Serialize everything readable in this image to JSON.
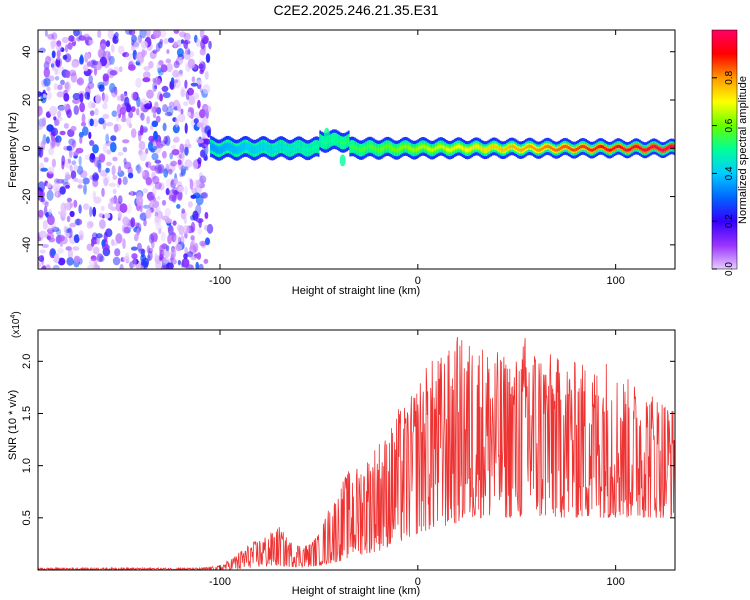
{
  "title": "C2E2.2025.246.21.35.E31",
  "chart_data": [
    {
      "type": "heatmap",
      "title": "C2E2.2025.246.21.35.E31",
      "xlabel": "Height of straight line (km)",
      "ylabel": "Frequency (Hz)",
      "xlim": [
        -192,
        130
      ],
      "ylim": [
        -50,
        49
      ],
      "xticks": [
        -100,
        0,
        100
      ],
      "xtick_labels": [
        "-100",
        "0",
        "100"
      ],
      "yticks": [
        -40,
        -20,
        0,
        20,
        40
      ],
      "ytick_labels": [
        "-40",
        "-20",
        "0",
        "20",
        "40"
      ],
      "grid": false,
      "noise_region_km": [
        -192,
        -105
      ],
      "signal_band_hz": [
        -4,
        4
      ],
      "colorbar": {
        "label": "Normalized spectral amplitude",
        "range": [
          0.0,
          1.0
        ],
        "ticks": [
          0.0,
          0.2,
          0.4,
          0.6,
          0.8
        ],
        "tick_labels": [
          "0.0",
          "0.2",
          "0.4",
          "0.6",
          "0.8"
        ],
        "colormap": [
          "#e6ccff",
          "#9933ff",
          "#3300ff",
          "#0066ff",
          "#00ccff",
          "#00ff99",
          "#66ff00",
          "#ffff00",
          "#ff9900",
          "#ff0000",
          "#ff0066"
        ]
      }
    },
    {
      "type": "line",
      "xlabel": "Height of straight line (km)",
      "ylabel": "SNR (10 * v/v)",
      "y_multiplier": "(x10^4)",
      "y_multiplier_base": "(x10",
      "y_multiplier_exp": "4",
      "y_multiplier_close": ")",
      "xlim": [
        -192,
        130
      ],
      "ylim": [
        0,
        2.3
      ],
      "xticks": [
        -100,
        0,
        100
      ],
      "xtick_labels": [
        "-100",
        "0",
        "100"
      ],
      "yticks": [
        0.5,
        1.0,
        1.5,
        2.0
      ],
      "ytick_labels": [
        "0.5",
        "1.0",
        "1.5",
        "2.0"
      ],
      "color": "#ee3333",
      "series": [
        {
          "name": "SNR",
          "x": [
            -192,
            -150,
            -110,
            -100,
            -95,
            -90,
            -85,
            -80,
            -75,
            -70,
            -65,
            -60,
            -55,
            -50,
            -45,
            -40,
            -37,
            -35,
            -30,
            -25,
            -20,
            -15,
            -10,
            -5,
            0,
            5,
            10,
            15,
            20,
            25,
            30,
            35,
            40,
            45,
            50,
            55,
            60,
            65,
            70,
            75,
            80,
            85,
            90,
            95,
            100,
            105,
            110,
            115,
            120,
            125,
            130
          ],
          "y": [
            0.01,
            0.01,
            0.01,
            0.02,
            0.05,
            0.1,
            0.15,
            0.18,
            0.22,
            0.3,
            0.15,
            0.12,
            0.1,
            0.15,
            0.35,
            0.45,
            0.85,
            0.6,
            0.55,
            0.65,
            0.9,
            0.75,
            1.1,
            0.95,
            1.05,
            1.25,
            1.4,
            1.5,
            1.6,
            1.75,
            1.65,
            1.95,
            1.5,
            1.7,
            1.6,
            2.3,
            1.9,
            1.55,
            1.85,
            1.4,
            1.6,
            1.7,
            1.45,
            1.5,
            1.35,
            1.55,
            1.3,
            1.45,
            1.25,
            1.35,
            1.2
          ],
          "y_upper": [
            0.02,
            0.02,
            0.02,
            0.04,
            0.1,
            0.18,
            0.25,
            0.3,
            0.35,
            0.42,
            0.28,
            0.25,
            0.25,
            0.35,
            0.6,
            0.75,
            0.9,
            0.95,
            1.0,
            1.1,
            1.25,
            1.3,
            1.55,
            1.6,
            1.8,
            2.0,
            2.05,
            2.1,
            2.25,
            2.2,
            2.2,
            2.15,
            2.1,
            2.05,
            2.05,
            2.3,
            2.15,
            2.1,
            2.05,
            2.0,
            2.0,
            2.0,
            1.95,
            2.05,
            1.9,
            1.85,
            1.8,
            1.75,
            1.7,
            1.65,
            1.55
          ],
          "y_lower": [
            0.0,
            0.0,
            0.0,
            0.0,
            0.0,
            0.0,
            0.02,
            0.03,
            0.03,
            0.04,
            0.03,
            0.03,
            0.03,
            0.04,
            0.06,
            0.08,
            0.1,
            0.12,
            0.14,
            0.16,
            0.18,
            0.22,
            0.25,
            0.3,
            0.35,
            0.38,
            0.4,
            0.42,
            0.45,
            0.48,
            0.5,
            0.5,
            0.5,
            0.5,
            0.5,
            0.5,
            0.5,
            0.5,
            0.5,
            0.5,
            0.5,
            0.5,
            0.5,
            0.5,
            0.5,
            0.5,
            0.5,
            0.5,
            0.5,
            0.5,
            0.5
          ]
        }
      ]
    }
  ]
}
